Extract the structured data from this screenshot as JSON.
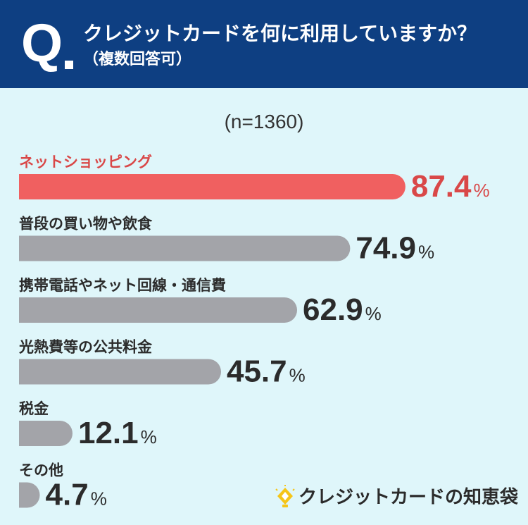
{
  "header": {
    "q_mark": "Q",
    "question": "クレジットカードを何に利用していますか？",
    "note": "（複数回答可）"
  },
  "sample": "(n=1360)",
  "chart_data": {
    "type": "bar",
    "orientation": "horizontal",
    "title": "クレジットカードを何に利用していますか？",
    "categories": [
      "ネットショッピング",
      "普段の買い物や飲食",
      "携帯電話やネット回線・通信費",
      "光熱費等の公共料金",
      "税金",
      "その他"
    ],
    "values": [
      87.4,
      74.9,
      62.9,
      45.7,
      12.1,
      4.7
    ],
    "value_labels": [
      "87.4",
      "74.9",
      "62.9",
      "45.7",
      "12.1",
      "4.7"
    ],
    "unit": "%",
    "highlight_index": 0,
    "colors": {
      "highlight": "#f06060",
      "highlight_text": "#d94848",
      "default": "#a3a4a9",
      "text": "#2b2b2b"
    },
    "xlim": [
      0,
      100
    ],
    "grid": false
  },
  "brand": {
    "icon": "lightbulb-icon",
    "name": "クレジットカードの知恵袋"
  }
}
